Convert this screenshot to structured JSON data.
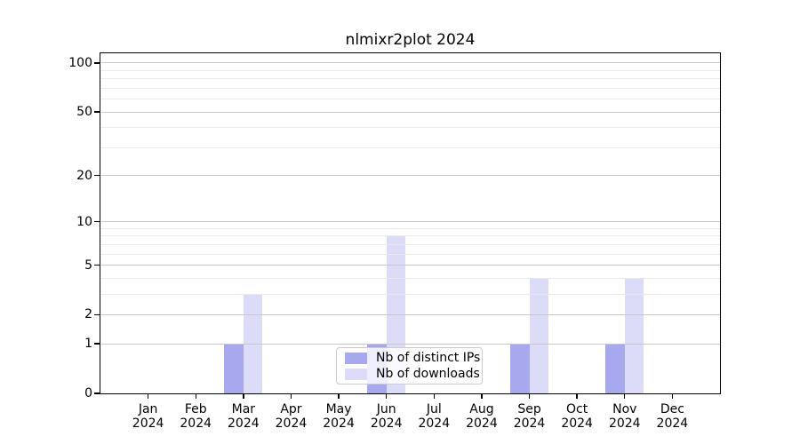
{
  "title": "nlmixr2plot 2024",
  "chart_data": {
    "type": "bar",
    "title": "nlmixr2plot 2024",
    "x": {
      "categories": [
        "Jan",
        "Feb",
        "Mar",
        "Apr",
        "May",
        "Jun",
        "Jul",
        "Aug",
        "Sep",
        "Oct",
        "Nov",
        "Dec"
      ],
      "year_label": "2024"
    },
    "series": [
      {
        "name": "Nb of distinct IPs",
        "color": "#a8a8ee",
        "values": [
          0,
          0,
          1,
          0,
          0,
          1,
          0,
          0,
          1,
          0,
          1,
          0
        ]
      },
      {
        "name": "Nb of downloads",
        "color": "#dcdcf8",
        "values": [
          0,
          0,
          3,
          0,
          0,
          8,
          0,
          0,
          4,
          0,
          4,
          0
        ]
      }
    ],
    "y_axis": {
      "scale": "log10(value+1)",
      "tick_values": [
        0,
        1,
        2,
        5,
        10,
        20,
        50,
        100
      ],
      "minor_gridline_values": [
        3,
        4,
        6,
        7,
        8,
        9,
        30,
        40,
        60,
        70,
        80,
        90
      ],
      "range_max": 115
    },
    "legend": {
      "position": "lower-center",
      "entries": [
        "Nb of distinct IPs",
        "Nb of downloads"
      ]
    },
    "grid": "horizontal, drawn above bars"
  },
  "colors": {
    "background": "#ffffff",
    "axis": "#000000",
    "text": "#000000",
    "major_grid": "#c8c8c8",
    "minor_grid": "#eaeaea",
    "legend_border": "#cccccc"
  }
}
